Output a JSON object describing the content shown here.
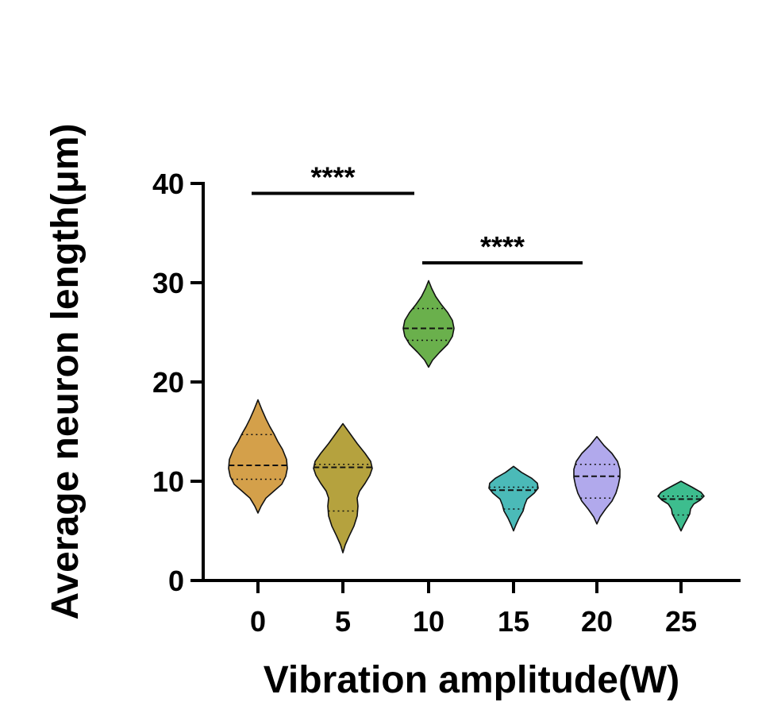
{
  "chart_data": {
    "type": "violin",
    "xlabel": "Vibration amplitude(W)",
    "ylabel": "Average neuron length(μm)",
    "ylim": [
      0,
      40
    ],
    "yticks": [
      "0",
      "10",
      "20",
      "30",
      "40"
    ],
    "categories": [
      "0",
      "5",
      "10",
      "15",
      "20",
      "25"
    ],
    "violins": [
      {
        "label": "0",
        "color": "#d4a04a",
        "min": 6.8,
        "max": 18.2,
        "q1": 10.2,
        "median": 11.6,
        "q3": 14.7,
        "profile": [
          [
            6.8,
            0
          ],
          [
            7.5,
            4
          ],
          [
            8.3,
            10
          ],
          [
            9.0,
            20
          ],
          [
            9.7,
            30
          ],
          [
            10.5,
            35
          ],
          [
            11.3,
            37
          ],
          [
            12.2,
            36
          ],
          [
            13.2,
            31
          ],
          [
            14.0,
            25
          ],
          [
            14.8,
            20
          ],
          [
            15.5,
            15
          ],
          [
            16.3,
            10
          ],
          [
            17.2,
            5
          ],
          [
            18.2,
            0
          ]
        ]
      },
      {
        "label": "5",
        "color": "#b5a23e",
        "min": 2.8,
        "max": 15.8,
        "q1": 7.0,
        "median": 11.4,
        "q3": 11.7,
        "profile": [
          [
            2.8,
            0
          ],
          [
            3.6,
            3
          ],
          [
            4.5,
            8
          ],
          [
            5.5,
            14
          ],
          [
            6.5,
            18
          ],
          [
            7.5,
            19
          ],
          [
            8.3,
            18
          ],
          [
            9.0,
            21
          ],
          [
            9.8,
            28
          ],
          [
            10.6,
            34
          ],
          [
            11.3,
            37
          ],
          [
            12.0,
            35
          ],
          [
            12.8,
            28
          ],
          [
            13.8,
            18
          ],
          [
            14.8,
            9
          ],
          [
            15.8,
            0
          ]
        ]
      },
      {
        "label": "10",
        "color": "#6ab04c",
        "min": 21.5,
        "max": 30.2,
        "q1": 24.2,
        "median": 25.4,
        "q3": 27.4,
        "profile": [
          [
            21.5,
            0
          ],
          [
            22.2,
            5
          ],
          [
            23.0,
            14
          ],
          [
            23.8,
            24
          ],
          [
            24.6,
            30
          ],
          [
            25.4,
            32
          ],
          [
            26.2,
            30
          ],
          [
            27.0,
            24
          ],
          [
            27.8,
            16
          ],
          [
            28.6,
            9
          ],
          [
            29.4,
            4
          ],
          [
            30.2,
            0
          ]
        ]
      },
      {
        "label": "15",
        "color": "#4bbab8",
        "min": 5.0,
        "max": 11.5,
        "q1": 7.2,
        "median": 9.1,
        "q3": 9.4,
        "profile": [
          [
            5.0,
            0
          ],
          [
            5.6,
            3
          ],
          [
            6.3,
            7
          ],
          [
            7.0,
            12
          ],
          [
            7.6,
            14
          ],
          [
            8.2,
            17
          ],
          [
            8.8,
            26
          ],
          [
            9.3,
            31
          ],
          [
            9.8,
            30
          ],
          [
            10.3,
            23
          ],
          [
            10.9,
            10
          ],
          [
            11.5,
            0
          ]
        ]
      },
      {
        "label": "20",
        "color": "#b1a9ec",
        "min": 5.7,
        "max": 14.5,
        "q1": 8.3,
        "median": 10.5,
        "q3": 11.7,
        "profile": [
          [
            5.7,
            0
          ],
          [
            6.4,
            4
          ],
          [
            7.2,
            11
          ],
          [
            8.0,
            19
          ],
          [
            8.8,
            24
          ],
          [
            9.6,
            27
          ],
          [
            10.4,
            29
          ],
          [
            11.2,
            29
          ],
          [
            12.0,
            26
          ],
          [
            12.8,
            19
          ],
          [
            13.6,
            9
          ],
          [
            14.5,
            0
          ]
        ]
      },
      {
        "label": "25",
        "color": "#3dbd8e",
        "min": 5.0,
        "max": 10.0,
        "q1": 6.6,
        "median": 8.2,
        "q3": 8.5,
        "profile": [
          [
            5.0,
            0
          ],
          [
            5.5,
            3
          ],
          [
            6.1,
            7
          ],
          [
            6.7,
            11
          ],
          [
            7.2,
            12
          ],
          [
            7.7,
            16
          ],
          [
            8.1,
            24
          ],
          [
            8.5,
            29
          ],
          [
            8.9,
            25
          ],
          [
            9.4,
            14
          ],
          [
            10.0,
            0
          ]
        ]
      }
    ],
    "significance": [
      {
        "from": "0",
        "to": "10",
        "y": 39,
        "label": "****"
      },
      {
        "from": "10",
        "to": "20",
        "y": 32,
        "label": "****"
      }
    ]
  }
}
